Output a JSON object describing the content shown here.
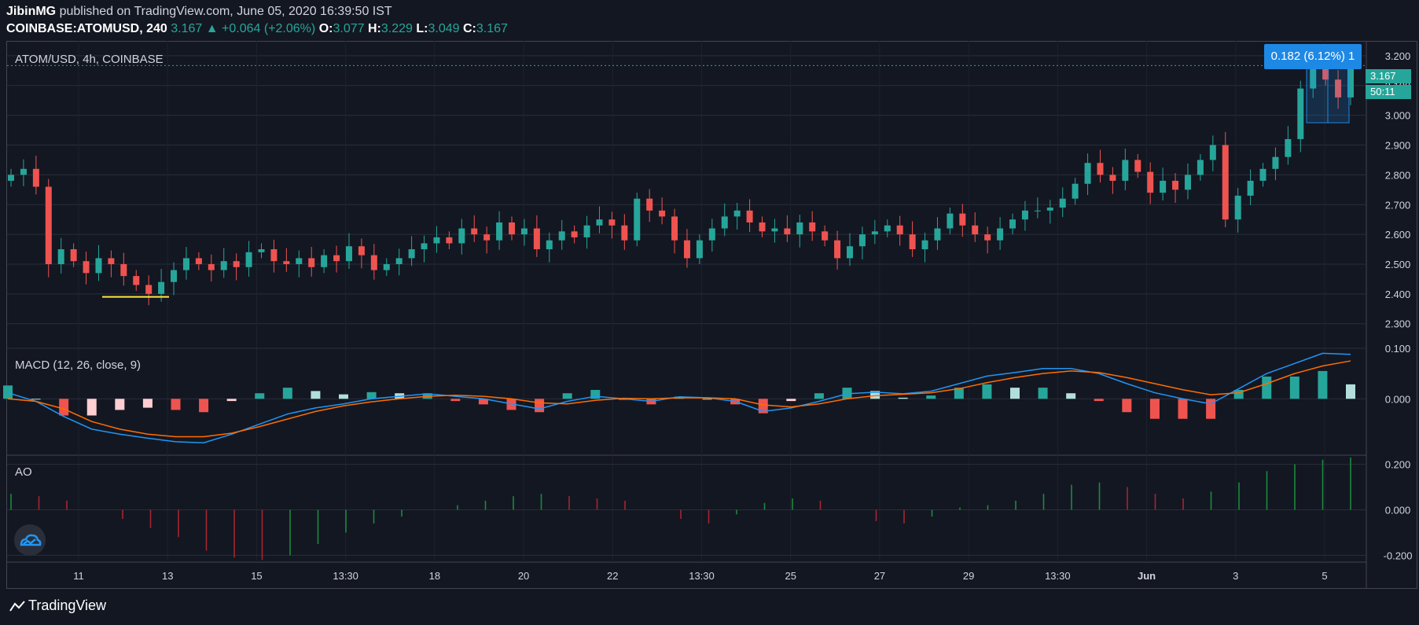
{
  "header": {
    "author": "JibinMG",
    "published_text": "published on TradingView.com, June 05, 2020 16:39:50 IST",
    "symbol": "COINBASE:ATOMUSD, 240",
    "last": "3.167",
    "change": "+0.064 (+2.06%)",
    "o_label": "O:",
    "o_value": "3.077",
    "h_label": "H:",
    "h_value": "3.229",
    "l_label": "L:",
    "l_value": "3.049",
    "c_label": "C:",
    "c_value": "3.167"
  },
  "panes": {
    "price_title": "ATOM/USD, 4h, COINBASE",
    "macd_title": "MACD (12, 26, close, 9)",
    "ao_title": "AO"
  },
  "tags": {
    "measure": "0.182 (6.12%) 1",
    "price": "3.167",
    "countdown": "50:11"
  },
  "brand": {
    "name": "TradingView"
  },
  "colors": {
    "background": "#131722",
    "up": "#26a69a",
    "down": "#ef5350",
    "macd_line": "#2196f3",
    "signal_line": "#ff6d00",
    "highlight_blue": "#1e88e5",
    "support_line": "#ffeb3b"
  },
  "chart_data": [
    {
      "type": "candlestick",
      "title": "ATOM/USD, 4h, COINBASE",
      "y_ticks": [
        "3.200",
        "3.100",
        "3.000",
        "2.900",
        "2.800",
        "2.700",
        "2.600",
        "2.500",
        "2.400",
        "2.300"
      ],
      "ylim": [
        2.22,
        3.25
      ],
      "x_ticks": [
        "11",
        "13",
        "15",
        "13:30",
        "18",
        "20",
        "22",
        "13:30",
        "25",
        "27",
        "29",
        "13:30",
        "Jun",
        "3",
        "5"
      ],
      "current_price": 3.167,
      "close_series": [
        2.8,
        2.82,
        2.76,
        2.5,
        2.55,
        2.51,
        2.47,
        2.52,
        2.5,
        2.46,
        2.43,
        2.4,
        2.44,
        2.48,
        2.52,
        2.5,
        2.48,
        2.51,
        2.49,
        2.54,
        2.55,
        2.51,
        2.5,
        2.52,
        2.49,
        2.53,
        2.51,
        2.56,
        2.53,
        2.48,
        2.5,
        2.52,
        2.55,
        2.57,
        2.59,
        2.57,
        2.62,
        2.6,
        2.58,
        2.64,
        2.6,
        2.62,
        2.55,
        2.58,
        2.61,
        2.59,
        2.63,
        2.65,
        2.63,
        2.58,
        2.72,
        2.68,
        2.66,
        2.58,
        2.52,
        2.58,
        2.62,
        2.66,
        2.68,
        2.64,
        2.61,
        2.62,
        2.6,
        2.64,
        2.61,
        2.58,
        2.52,
        2.56,
        2.6,
        2.61,
        2.63,
        2.6,
        2.55,
        2.58,
        2.62,
        2.67,
        2.63,
        2.6,
        2.58,
        2.62,
        2.65,
        2.68,
        2.68,
        2.69,
        2.72,
        2.77,
        2.84,
        2.8,
        2.78,
        2.85,
        2.81,
        2.74,
        2.78,
        2.75,
        2.8,
        2.85,
        2.9,
        2.65,
        2.73,
        2.78,
        2.82,
        2.86,
        2.92,
        3.09,
        3.16,
        3.12,
        3.06,
        3.167
      ]
    },
    {
      "type": "line",
      "title": "MACD (12, 26, close, 9)",
      "y_ticks": [
        "0.100",
        "0.000"
      ],
      "ylim": [
        -0.11,
        0.1
      ],
      "series": [
        {
          "name": "MACD",
          "values": [
            0.012,
            -0.005,
            -0.035,
            -0.06,
            -0.07,
            -0.078,
            -0.085,
            -0.087,
            -0.07,
            -0.05,
            -0.03,
            -0.018,
            -0.01,
            0.0,
            0.005,
            0.01,
            0.005,
            0.0,
            -0.01,
            -0.02,
            -0.005,
            0.005,
            0.0,
            -0.005,
            0.004,
            0.002,
            -0.005,
            -0.025,
            -0.018,
            -0.005,
            0.01,
            0.013,
            0.01,
            0.015,
            0.03,
            0.045,
            0.052,
            0.06,
            0.06,
            0.05,
            0.03,
            0.012,
            0.0,
            -0.01,
            0.02,
            0.05,
            0.07,
            0.09,
            0.088
          ]
        },
        {
          "name": "Signal",
          "values": [
            0.0,
            -0.005,
            -0.02,
            -0.045,
            -0.06,
            -0.07,
            -0.075,
            -0.075,
            -0.068,
            -0.055,
            -0.04,
            -0.025,
            -0.014,
            -0.006,
            0.0,
            0.005,
            0.007,
            0.005,
            0.0,
            -0.008,
            -0.01,
            -0.003,
            0.001,
            0.0,
            0.002,
            0.002,
            0.0,
            -0.012,
            -0.016,
            -0.01,
            0.0,
            0.006,
            0.009,
            0.012,
            0.02,
            0.032,
            0.042,
            0.05,
            0.055,
            0.052,
            0.042,
            0.03,
            0.018,
            0.008,
            0.012,
            0.03,
            0.05,
            0.065,
            0.075
          ]
        }
      ]
    },
    {
      "type": "bar",
      "title": "AO",
      "y_ticks": [
        "0.200",
        "0.000",
        "-0.200"
      ],
      "ylim": [
        -0.23,
        0.24
      ],
      "series": [
        {
          "name": "AO",
          "values": [
            0.07,
            0.06,
            0.04,
            0.0,
            -0.04,
            -0.08,
            -0.12,
            -0.18,
            -0.21,
            -0.22,
            -0.2,
            -0.15,
            -0.1,
            -0.06,
            -0.03,
            0.0,
            0.02,
            0.04,
            0.06,
            0.07,
            0.06,
            0.05,
            0.04,
            0.0,
            -0.04,
            -0.06,
            -0.02,
            0.03,
            0.05,
            0.04,
            0.0,
            -0.05,
            -0.06,
            -0.03,
            0.01,
            0.02,
            0.04,
            0.07,
            0.11,
            0.12,
            0.1,
            0.07,
            0.05,
            0.08,
            0.12,
            0.17,
            0.2,
            0.22,
            0.23
          ]
        }
      ]
    }
  ]
}
